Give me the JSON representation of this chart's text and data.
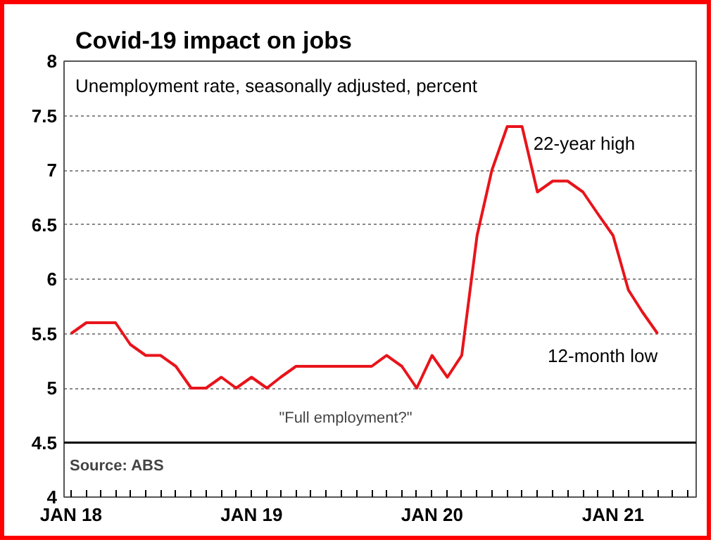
{
  "chart_data": {
    "type": "line",
    "title": "Covid-19 impact on jobs",
    "subtitle": "Unemployment rate, seasonally adjusted, percent",
    "x": [
      "2018-01",
      "2018-02",
      "2018-03",
      "2018-04",
      "2018-05",
      "2018-06",
      "2018-07",
      "2018-08",
      "2018-09",
      "2018-10",
      "2018-11",
      "2018-12",
      "2019-01",
      "2019-02",
      "2019-03",
      "2019-04",
      "2019-05",
      "2019-06",
      "2019-07",
      "2019-08",
      "2019-09",
      "2019-10",
      "2019-11",
      "2019-12",
      "2020-01",
      "2020-02",
      "2020-03",
      "2020-04",
      "2020-05",
      "2020-06",
      "2020-07",
      "2020-08",
      "2020-09",
      "2020-10",
      "2020-11",
      "2020-12",
      "2021-01",
      "2021-02",
      "2021-03",
      "2021-04"
    ],
    "series": [
      {
        "color": "#e8141b",
        "values": [
          5.5,
          5.6,
          5.6,
          5.6,
          5.4,
          5.3,
          5.3,
          5.2,
          5.0,
          5.0,
          5.1,
          5.0,
          5.1,
          5.0,
          5.1,
          5.2,
          5.2,
          5.2,
          5.2,
          5.2,
          5.2,
          5.3,
          5.2,
          5.0,
          5.3,
          5.1,
          5.3,
          6.4,
          7.0,
          7.4,
          7.4,
          6.8,
          6.9,
          6.9,
          6.8,
          6.6,
          6.4,
          5.9,
          5.7,
          5.5
        ]
      }
    ],
    "xlim": [
      "2017-12-18",
      "2021-06-18"
    ],
    "xticks": [
      {
        "value": "2018-01",
        "label": "JAN 18"
      },
      {
        "value": "2018-02",
        "label": null
      },
      {
        "value": "2018-03",
        "label": null
      },
      {
        "value": "2018-04",
        "label": null
      },
      {
        "value": "2018-05",
        "label": null
      },
      {
        "value": "2018-06",
        "label": null
      },
      {
        "value": "2018-07",
        "label": null
      },
      {
        "value": "2018-08",
        "label": null
      },
      {
        "value": "2018-09",
        "label": null
      },
      {
        "value": "2018-10",
        "label": null
      },
      {
        "value": "2018-11",
        "label": null
      },
      {
        "value": "2018-12",
        "label": null
      },
      {
        "value": "2019-01",
        "label": "JAN 19"
      },
      {
        "value": "2019-02",
        "label": null
      },
      {
        "value": "2019-03",
        "label": null
      },
      {
        "value": "2019-04",
        "label": null
      },
      {
        "value": "2019-05",
        "label": null
      },
      {
        "value": "2019-06",
        "label": null
      },
      {
        "value": "2019-07",
        "label": null
      },
      {
        "value": "2019-08",
        "label": null
      },
      {
        "value": "2019-09",
        "label": null
      },
      {
        "value": "2019-10",
        "label": null
      },
      {
        "value": "2019-11",
        "label": null
      },
      {
        "value": "2019-12",
        "label": null
      },
      {
        "value": "2020-01",
        "label": "JAN 20"
      },
      {
        "value": "2020-02",
        "label": null
      },
      {
        "value": "2020-03",
        "label": null
      },
      {
        "value": "2020-04",
        "label": null
      },
      {
        "value": "2020-05",
        "label": null
      },
      {
        "value": "2020-06",
        "label": null
      },
      {
        "value": "2020-07",
        "label": null
      },
      {
        "value": "2020-08",
        "label": null
      },
      {
        "value": "2020-09",
        "label": null
      },
      {
        "value": "2020-10",
        "label": null
      },
      {
        "value": "2020-11",
        "label": null
      },
      {
        "value": "2020-12",
        "label": null
      },
      {
        "value": "2021-01",
        "label": "JAN 21"
      },
      {
        "value": "2021-02",
        "label": null
      },
      {
        "value": "2021-03",
        "label": null
      },
      {
        "value": "2021-04",
        "label": null
      },
      {
        "value": "2021-05",
        "label": null
      },
      {
        "value": "2021-06",
        "label": null
      }
    ],
    "ylim": [
      4,
      8
    ],
    "yticks": [
      4,
      4.5,
      5,
      5.5,
      6,
      6.5,
      7,
      7.5,
      8
    ],
    "grid": "y",
    "marker": "none",
    "line_style": "solid",
    "ref_lines": [
      {
        "axis": "y",
        "value": 4.5,
        "label": null,
        "color": "#000000",
        "line_style": "solid"
      }
    ],
    "annotations": [
      {
        "text": "22-year high",
        "x": "2020-07",
        "y": 7.4
      },
      {
        "text": "12-month low",
        "x": "2021-04",
        "y": 5.5
      },
      "\"Full employment?\"",
      "Source: ABS"
    ]
  }
}
